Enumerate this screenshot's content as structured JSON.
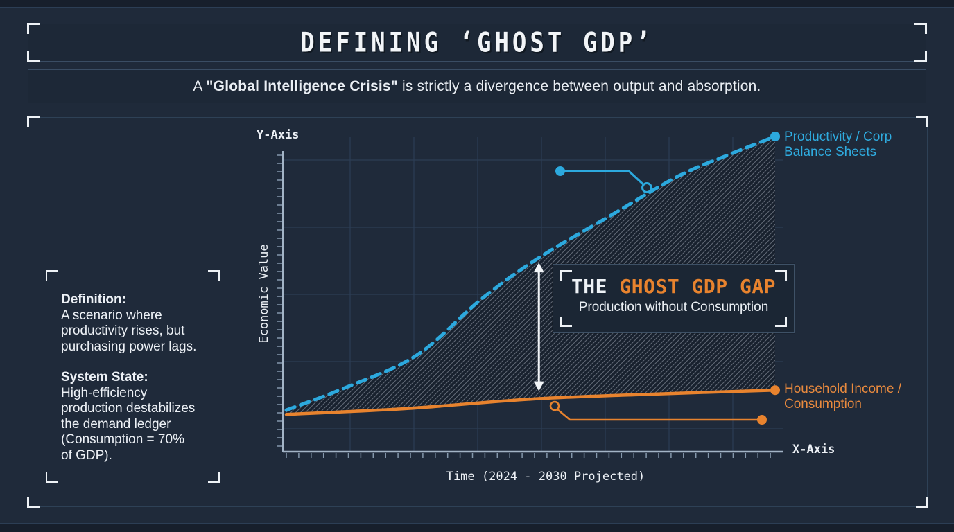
{
  "title": "DEFINING ‘GHOST GDP’",
  "subtitle": {
    "prefix": "A ",
    "bold": "\"Global Intelligence Crisis\"",
    "rest": " is strictly a divergence between output and absorption."
  },
  "left_panel": {
    "definition_heading": "Definition:",
    "definition_body": "A scenario where\nproductivity rises, but\npurchasing power lags.",
    "system_heading": "System State:",
    "system_body": "High-efficiency\nproduction destabilizes\nthe demand ledger\n(Consumption = 70%\nof GDP)."
  },
  "gap_box": {
    "title_prefix": "THE ",
    "title_highlight": "GHOST GDP GAP",
    "subtitle": "Production without Consumption"
  },
  "labels": {
    "y_axis": "Y-Axis",
    "x_axis": "X-Axis",
    "y_title": "Economic Value",
    "x_title": "Time (2024 - 2030 Projected)"
  },
  "legend": {
    "productivity": "Productivity / Corp\nBalance Sheets",
    "household": "Household Income /\nConsumption"
  },
  "colors": {
    "background": "#1F2A3A",
    "accent_cyan": "#2CA9DE",
    "accent_orange": "#E8832E",
    "arrow_white": "#F2F5F8",
    "grid": "#2C3D54",
    "axis": "#A3B4C6",
    "hatch_fill": "#18212E",
    "hatch_line": "rgba(222,231,240,0.36)"
  },
  "chart_data": {
    "type": "line",
    "title": "DEFINING ‘GHOST GDP’",
    "xlabel": "Time (2024 - 2030 Projected)",
    "ylabel": "Economic Value",
    "x_range": [
      2024,
      2030
    ],
    "y_range": [
      0,
      100
    ],
    "grid": true,
    "legend_position": "right-of-line-ends",
    "series": [
      {
        "name": "Productivity / Corp Balance Sheets",
        "style": "dashed",
        "color": "#2CA9DE",
        "x": [
          2024,
          2024.7,
          2025.6,
          2026.4,
          2027.1,
          2028.0,
          2028.8,
          2029.4,
          2030
        ],
        "y": [
          12.5,
          19,
          29,
          46,
          58.3,
          71.3,
          82.7,
          89,
          94.8
        ]
      },
      {
        "name": "Household Income / Consumption",
        "style": "solid",
        "color": "#E8832E",
        "x": [
          2024,
          2025.5,
          2027.0,
          2028.5,
          2030
        ],
        "y": [
          11.2,
          13.0,
          15.8,
          17.3,
          18.5
        ]
      }
    ],
    "annotations": {
      "gap_label": "THE GHOST GDP GAP",
      "gap_sublabel": "Production without Consumption",
      "gap_arrow_x": 2027.1,
      "hatched_region": "between the two series (Ghost GDP gap)"
    }
  }
}
